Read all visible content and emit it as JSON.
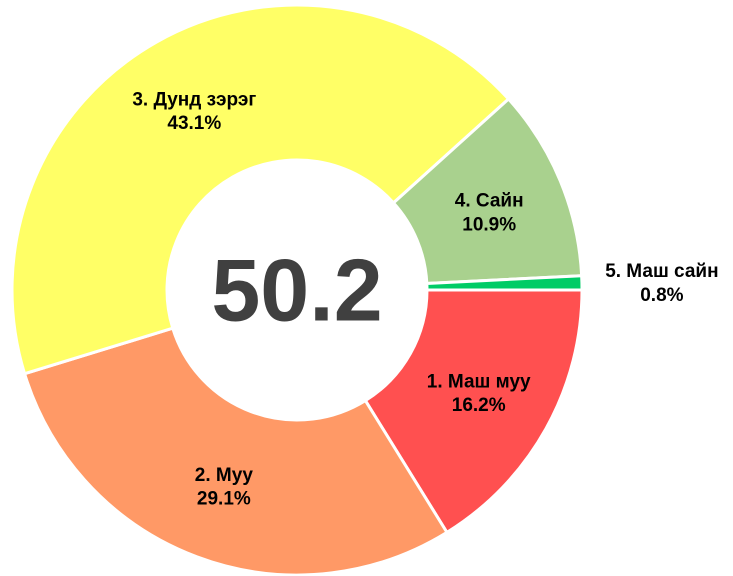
{
  "chart_data": {
    "type": "donut",
    "categories": [
      "1. Маш муу",
      "2. Муу",
      "3. Дунд зэрэг",
      "4. Сайн",
      "5. Маш сайн"
    ],
    "values": [
      16.2,
      29.1,
      43.1,
      10.9,
      0.8
    ],
    "value_labels": [
      "16.2%",
      "29.1%",
      "43.1%",
      "10.9%",
      "0.8%"
    ],
    "colors": [
      "#ff5050",
      "#ff9966",
      "#ffff66",
      "#a9d18e",
      "#00cc66"
    ],
    "center_value": 50.2
  }
}
